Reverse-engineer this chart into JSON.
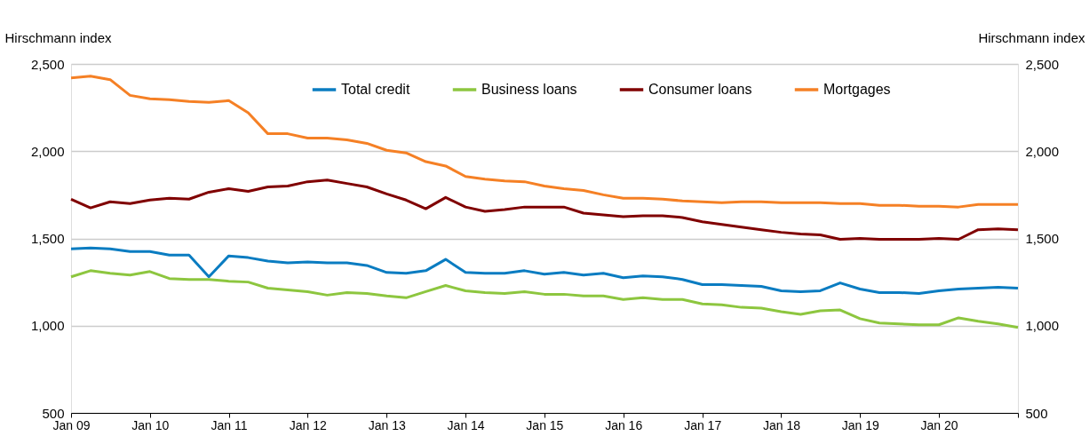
{
  "chart_data": {
    "type": "line",
    "ylabel": "Hirschmann index",
    "y2label": "Hirschmann index",
    "x": [
      "2009-01",
      "2009-04",
      "2009-07",
      "2009-10",
      "2010-01",
      "2010-04",
      "2010-07",
      "2010-10",
      "2011-01",
      "2011-04",
      "2011-07",
      "2011-10",
      "2012-01",
      "2012-04",
      "2012-07",
      "2012-10",
      "2013-01",
      "2013-04",
      "2013-07",
      "2013-10",
      "2014-01",
      "2014-04",
      "2014-07",
      "2014-10",
      "2015-01",
      "2015-04",
      "2015-07",
      "2015-10",
      "2016-01",
      "2016-04",
      "2016-07",
      "2016-10",
      "2017-01",
      "2017-04",
      "2017-07",
      "2017-10",
      "2018-01",
      "2018-04",
      "2018-07",
      "2018-10",
      "2019-01",
      "2019-04",
      "2019-07",
      "2019-10",
      "2020-01",
      "2020-04",
      "2020-07",
      "2020-10",
      "2021-01"
    ],
    "series": [
      {
        "name": "Total credit",
        "color": "#0a7cc1",
        "values": [
          1440,
          1445,
          1440,
          1425,
          1425,
          1405,
          1405,
          1280,
          1400,
          1390,
          1370,
          1360,
          1365,
          1360,
          1360,
          1345,
          1305,
          1300,
          1315,
          1380,
          1305,
          1300,
          1300,
          1315,
          1295,
          1305,
          1290,
          1300,
          1275,
          1285,
          1280,
          1265,
          1235,
          1235,
          1230,
          1225,
          1200,
          1195,
          1200,
          1245,
          1210,
          1190,
          1190,
          1185,
          1200,
          1210,
          1215,
          1220,
          1215
        ]
      },
      {
        "name": "Business loans",
        "color": "#8dc63f",
        "values": [
          1280,
          1315,
          1300,
          1290,
          1310,
          1270,
          1265,
          1265,
          1255,
          1250,
          1215,
          1205,
          1195,
          1175,
          1190,
          1185,
          1170,
          1160,
          1195,
          1230,
          1200,
          1190,
          1185,
          1195,
          1180,
          1180,
          1170,
          1170,
          1150,
          1160,
          1150,
          1150,
          1125,
          1120,
          1105,
          1100,
          1080,
          1065,
          1085,
          1090,
          1040,
          1015,
          1010,
          1005,
          1005,
          1045,
          1025,
          1010,
          990
        ]
      },
      {
        "name": "Consumer loans",
        "color": "#800000",
        "values": [
          1725,
          1675,
          1710,
          1700,
          1720,
          1730,
          1725,
          1765,
          1785,
          1770,
          1795,
          1800,
          1825,
          1835,
          1815,
          1795,
          1755,
          1720,
          1670,
          1735,
          1680,
          1655,
          1665,
          1680,
          1680,
          1680,
          1645,
          1635,
          1625,
          1630,
          1630,
          1620,
          1595,
          1580,
          1565,
          1550,
          1535,
          1525,
          1520,
          1495,
          1500,
          1495,
          1495,
          1495,
          1500,
          1495,
          1550,
          1555,
          1550
        ]
      },
      {
        "name": "Mortgages",
        "color": "#f58025",
        "values": [
          2420,
          2430,
          2410,
          2320,
          2300,
          2295,
          2285,
          2280,
          2290,
          2220,
          2100,
          2100,
          2075,
          2075,
          2065,
          2045,
          2005,
          1990,
          1940,
          1915,
          1855,
          1840,
          1830,
          1825,
          1800,
          1785,
          1775,
          1750,
          1730,
          1730,
          1725,
          1715,
          1710,
          1705,
          1710,
          1710,
          1705,
          1705,
          1705,
          1700,
          1700,
          1690,
          1690,
          1685,
          1685,
          1680,
          1695,
          1695,
          1695
        ]
      }
    ],
    "xlim": [
      "2009-01",
      "2021-01"
    ],
    "xticks": [
      {
        "value": "2009-01",
        "label": "Jan 09"
      },
      {
        "value": "2010-01",
        "label": "Jan 10"
      },
      {
        "value": "2011-01",
        "label": "Jan 11"
      },
      {
        "value": "2012-01",
        "label": "Jan 12"
      },
      {
        "value": "2013-01",
        "label": "Jan 13"
      },
      {
        "value": "2014-01",
        "label": "Jan 14"
      },
      {
        "value": "2015-01",
        "label": "Jan 15"
      },
      {
        "value": "2016-01",
        "label": "Jan 16"
      },
      {
        "value": "2017-01",
        "label": "Jan 17"
      },
      {
        "value": "2018-01",
        "label": "Jan 18"
      },
      {
        "value": "2019-01",
        "label": "Jan 19"
      },
      {
        "value": "2020-01",
        "label": "Jan 20"
      },
      {
        "value": "2021-01",
        "label": null
      }
    ],
    "ylim": [
      500,
      2500
    ],
    "yticks": [
      {
        "value": 500,
        "label": "500"
      },
      {
        "value": 1000,
        "label": "1,000"
      },
      {
        "value": 1500,
        "label": "1,500"
      },
      {
        "value": 2000,
        "label": "2,000"
      },
      {
        "value": 2500,
        "label": "2,500"
      }
    ],
    "y2lim": [
      500,
      2500
    ],
    "y2ticks": [
      {
        "value": 500,
        "label": "500"
      },
      {
        "value": 1000,
        "label": "1,000"
      },
      {
        "value": 1500,
        "label": "1,500"
      },
      {
        "value": 2000,
        "label": "2,000"
      },
      {
        "value": 2500,
        "label": "2,500"
      }
    ],
    "grid": "y",
    "legend": "top",
    "marker": "none",
    "line_style": "solid"
  }
}
